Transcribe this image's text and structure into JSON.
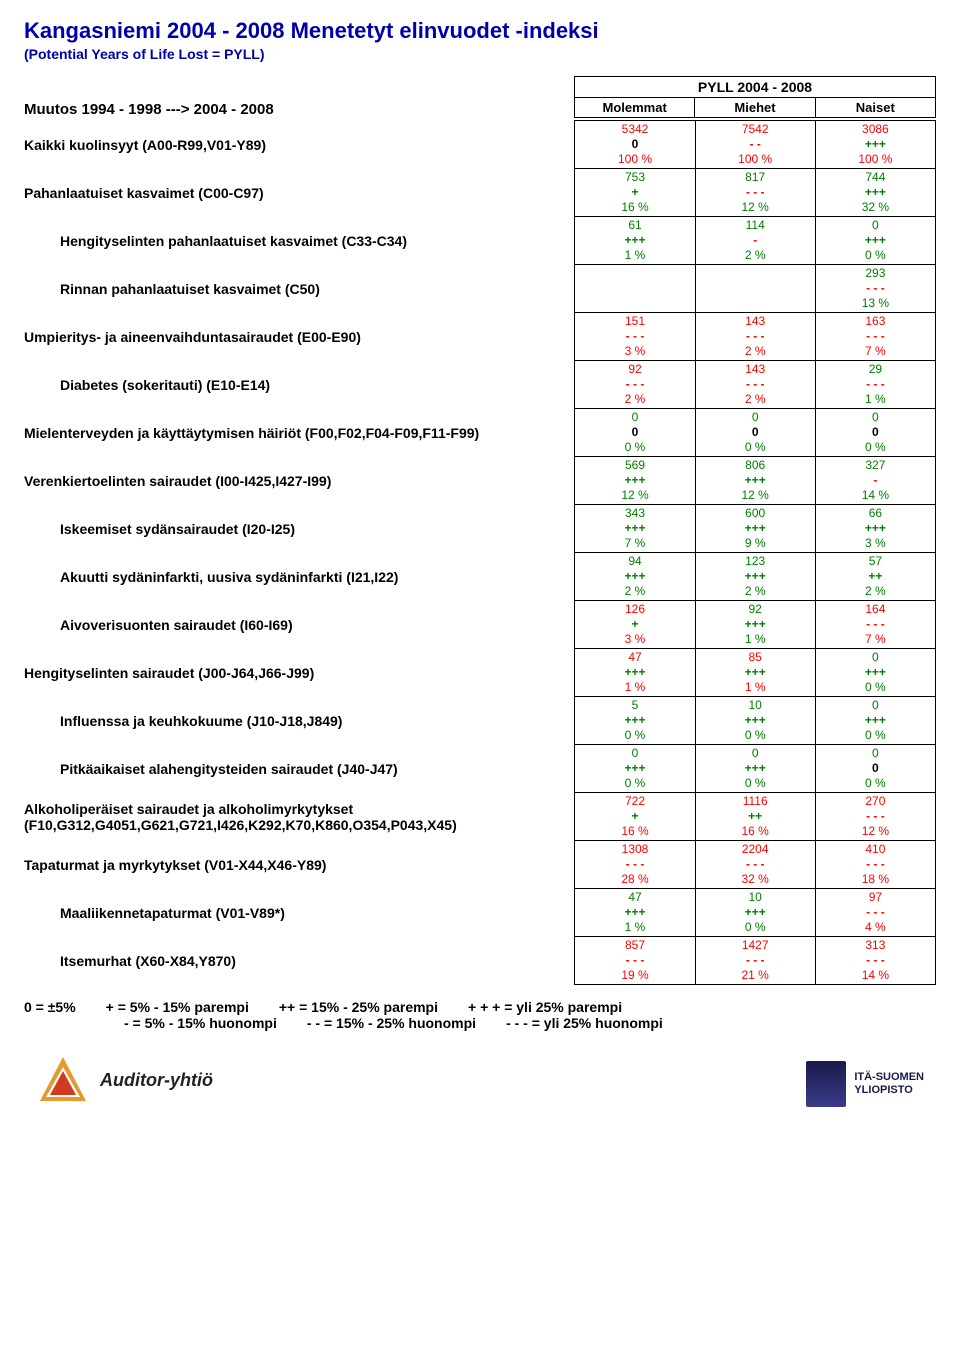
{
  "title": "Kangasniemi 2004 - 2008 Menetetyt elinvuodet -indeksi",
  "subtitle": "(Potential Years of Life Lost = PYLL)",
  "change_label": "Muutos 1994 - 1998 ---> 2004 - 2008",
  "pyll_header": "PYLL 2004 - 2008",
  "columns": [
    "Molemmat",
    "Miehet",
    "Naiset"
  ],
  "colors": {
    "red": "#ff0000",
    "green": "#008000",
    "black": "#000000",
    "title": "#0000aa"
  },
  "rows": [
    {
      "label": "Kaikki kuolinsyyt (A00-R99,V01-Y89)",
      "indent": false,
      "cells": [
        {
          "a": "5342",
          "b": "0",
          "c": "100 %",
          "ca": "#ff0000",
          "cb": "#000000",
          "cc": "#ff0000"
        },
        {
          "a": "7542",
          "b": "- -",
          "c": "100 %",
          "ca": "#ff0000",
          "cb": "#ff0000",
          "cc": "#ff0000"
        },
        {
          "a": "3086",
          "b": "+++",
          "c": "100 %",
          "ca": "#ff0000",
          "cb": "#008000",
          "cc": "#ff0000"
        }
      ]
    },
    {
      "label": "Pahanlaatuiset kasvaimet (C00-C97)",
      "indent": false,
      "cells": [
        {
          "a": "753",
          "b": "+",
          "c": "16 %",
          "ca": "#008000",
          "cb": "#008000",
          "cc": "#008000"
        },
        {
          "a": "817",
          "b": "- - -",
          "c": "12 %",
          "ca": "#008000",
          "cb": "#ff0000",
          "cc": "#008000"
        },
        {
          "a": "744",
          "b": "+++",
          "c": "32 %",
          "ca": "#008000",
          "cb": "#008000",
          "cc": "#008000"
        }
      ]
    },
    {
      "label": "Hengityselinten pahanlaatuiset kasvaimet (C33-C34)",
      "indent": true,
      "cells": [
        {
          "a": "61",
          "b": "+++",
          "c": "1 %",
          "ca": "#008000",
          "cb": "#008000",
          "cc": "#008000"
        },
        {
          "a": "114",
          "b": "-",
          "c": "2 %",
          "ca": "#008000",
          "cb": "#ff0000",
          "cc": "#008000"
        },
        {
          "a": "0",
          "b": "+++",
          "c": "0 %",
          "ca": "#008000",
          "cb": "#008000",
          "cc": "#008000"
        }
      ]
    },
    {
      "label": "Rinnan pahanlaatuiset kasvaimet (C50)",
      "indent": true,
      "cells": [
        {
          "a": "",
          "b": "",
          "c": "",
          "ca": "#000000",
          "cb": "#000000",
          "cc": "#000000"
        },
        {
          "a": "",
          "b": "",
          "c": "",
          "ca": "#000000",
          "cb": "#000000",
          "cc": "#000000"
        },
        {
          "a": "293",
          "b": "- - -",
          "c": "13 %",
          "ca": "#008000",
          "cb": "#ff0000",
          "cc": "#008000"
        }
      ]
    },
    {
      "label": "Umpieritys- ja aineenvaihduntasairaudet (E00-E90)",
      "indent": false,
      "cells": [
        {
          "a": "151",
          "b": "- - -",
          "c": "3 %",
          "ca": "#ff0000",
          "cb": "#ff0000",
          "cc": "#ff0000"
        },
        {
          "a": "143",
          "b": "- - -",
          "c": "2 %",
          "ca": "#ff0000",
          "cb": "#ff0000",
          "cc": "#ff0000"
        },
        {
          "a": "163",
          "b": "- - -",
          "c": "7 %",
          "ca": "#ff0000",
          "cb": "#ff0000",
          "cc": "#ff0000"
        }
      ]
    },
    {
      "label": "Diabetes (sokeritauti) (E10-E14)",
      "indent": true,
      "cells": [
        {
          "a": "92",
          "b": "- - -",
          "c": "2 %",
          "ca": "#ff0000",
          "cb": "#ff0000",
          "cc": "#ff0000"
        },
        {
          "a": "143",
          "b": "- - -",
          "c": "2 %",
          "ca": "#ff0000",
          "cb": "#ff0000",
          "cc": "#ff0000"
        },
        {
          "a": "29",
          "b": "- - -",
          "c": "1 %",
          "ca": "#008000",
          "cb": "#ff0000",
          "cc": "#008000"
        }
      ]
    },
    {
      "label": "Mielenterveyden ja käyttäytymisen häiriöt (F00,F02,F04-F09,F11-F99)",
      "indent": false,
      "cells": [
        {
          "a": "0",
          "b": "0",
          "c": "0 %",
          "ca": "#008000",
          "cb": "#000000",
          "cc": "#008000"
        },
        {
          "a": "0",
          "b": "0",
          "c": "0 %",
          "ca": "#008000",
          "cb": "#000000",
          "cc": "#008000"
        },
        {
          "a": "0",
          "b": "0",
          "c": "0 %",
          "ca": "#008000",
          "cb": "#000000",
          "cc": "#008000"
        }
      ]
    },
    {
      "label": "Verenkiertoelinten sairaudet (I00-I425,I427-I99)",
      "indent": false,
      "cells": [
        {
          "a": "569",
          "b": "+++",
          "c": "12 %",
          "ca": "#008000",
          "cb": "#008000",
          "cc": "#008000"
        },
        {
          "a": "806",
          "b": "+++",
          "c": "12 %",
          "ca": "#008000",
          "cb": "#008000",
          "cc": "#008000"
        },
        {
          "a": "327",
          "b": "-",
          "c": "14 %",
          "ca": "#008000",
          "cb": "#ff0000",
          "cc": "#008000"
        }
      ]
    },
    {
      "label": "Iskeemiset sydänsairaudet (I20-I25)",
      "indent": true,
      "cells": [
        {
          "a": "343",
          "b": "+++",
          "c": "7 %",
          "ca": "#008000",
          "cb": "#008000",
          "cc": "#008000"
        },
        {
          "a": "600",
          "b": "+++",
          "c": "9 %",
          "ca": "#008000",
          "cb": "#008000",
          "cc": "#008000"
        },
        {
          "a": "66",
          "b": "+++",
          "c": "3 %",
          "ca": "#008000",
          "cb": "#008000",
          "cc": "#008000"
        }
      ]
    },
    {
      "label": "Akuutti sydäninfarkti, uusiva sydäninfarkti (I21,I22)",
      "indent": true,
      "cells": [
        {
          "a": "94",
          "b": "+++",
          "c": "2 %",
          "ca": "#008000",
          "cb": "#008000",
          "cc": "#008000"
        },
        {
          "a": "123",
          "b": "+++",
          "c": "2 %",
          "ca": "#008000",
          "cb": "#008000",
          "cc": "#008000"
        },
        {
          "a": "57",
          "b": "++",
          "c": "2 %",
          "ca": "#008000",
          "cb": "#008000",
          "cc": "#008000"
        }
      ]
    },
    {
      "label": "Aivoverisuonten sairaudet (I60-I69)",
      "indent": true,
      "cells": [
        {
          "a": "126",
          "b": "+",
          "c": "3 %",
          "ca": "#ff0000",
          "cb": "#008000",
          "cc": "#ff0000"
        },
        {
          "a": "92",
          "b": "+++",
          "c": "1 %",
          "ca": "#008000",
          "cb": "#008000",
          "cc": "#008000"
        },
        {
          "a": "164",
          "b": "- - -",
          "c": "7 %",
          "ca": "#ff0000",
          "cb": "#ff0000",
          "cc": "#ff0000"
        }
      ]
    },
    {
      "label": "Hengityselinten sairaudet (J00-J64,J66-J99)",
      "indent": false,
      "cells": [
        {
          "a": "47",
          "b": "+++",
          "c": "1 %",
          "ca": "#ff0000",
          "cb": "#008000",
          "cc": "#ff0000"
        },
        {
          "a": "85",
          "b": "+++",
          "c": "1 %",
          "ca": "#ff0000",
          "cb": "#008000",
          "cc": "#ff0000"
        },
        {
          "a": "0",
          "b": "+++",
          "c": "0 %",
          "ca": "#008000",
          "cb": "#008000",
          "cc": "#008000"
        }
      ]
    },
    {
      "label": "Influenssa ja keuhkokuume (J10-J18,J849)",
      "indent": true,
      "cells": [
        {
          "a": "5",
          "b": "+++",
          "c": "0 %",
          "ca": "#008000",
          "cb": "#008000",
          "cc": "#008000"
        },
        {
          "a": "10",
          "b": "+++",
          "c": "0 %",
          "ca": "#008000",
          "cb": "#008000",
          "cc": "#008000"
        },
        {
          "a": "0",
          "b": "+++",
          "c": "0 %",
          "ca": "#008000",
          "cb": "#008000",
          "cc": "#008000"
        }
      ]
    },
    {
      "label": "Pitkäaikaiset alahengitysteiden sairaudet (J40-J47)",
      "indent": true,
      "cells": [
        {
          "a": "0",
          "b": "+++",
          "c": "0 %",
          "ca": "#008000",
          "cb": "#008000",
          "cc": "#008000"
        },
        {
          "a": "0",
          "b": "+++",
          "c": "0 %",
          "ca": "#008000",
          "cb": "#008000",
          "cc": "#008000"
        },
        {
          "a": "0",
          "b": "0",
          "c": "0 %",
          "ca": "#008000",
          "cb": "#000000",
          "cc": "#008000"
        }
      ]
    },
    {
      "label": "Alkoholiperäiset sairaudet ja alkoholimyrkytykset (F10,G312,G4051,G621,G721,I426,K292,K70,K860,O354,P043,X45)",
      "indent": false,
      "cells": [
        {
          "a": "722",
          "b": "+",
          "c": "16 %",
          "ca": "#ff0000",
          "cb": "#008000",
          "cc": "#ff0000"
        },
        {
          "a": "1116",
          "b": "++",
          "c": "16 %",
          "ca": "#ff0000",
          "cb": "#008000",
          "cc": "#ff0000"
        },
        {
          "a": "270",
          "b": "- - -",
          "c": "12 %",
          "ca": "#ff0000",
          "cb": "#ff0000",
          "cc": "#ff0000"
        }
      ]
    },
    {
      "label": "Tapaturmat ja myrkytykset (V01-X44,X46-Y89)",
      "indent": false,
      "cells": [
        {
          "a": "1308",
          "b": "- - -",
          "c": "28 %",
          "ca": "#ff0000",
          "cb": "#ff0000",
          "cc": "#ff0000"
        },
        {
          "a": "2204",
          "b": "- - -",
          "c": "32 %",
          "ca": "#ff0000",
          "cb": "#ff0000",
          "cc": "#ff0000"
        },
        {
          "a": "410",
          "b": "- - -",
          "c": "18 %",
          "ca": "#ff0000",
          "cb": "#ff0000",
          "cc": "#ff0000"
        }
      ]
    },
    {
      "label": "Maaliikennetapaturmat (V01-V89*)",
      "indent": true,
      "cells": [
        {
          "a": "47",
          "b": "+++",
          "c": "1 %",
          "ca": "#008000",
          "cb": "#008000",
          "cc": "#008000"
        },
        {
          "a": "10",
          "b": "+++",
          "c": "0 %",
          "ca": "#008000",
          "cb": "#008000",
          "cc": "#008000"
        },
        {
          "a": "97",
          "b": "- - -",
          "c": "4 %",
          "ca": "#ff0000",
          "cb": "#ff0000",
          "cc": "#ff0000"
        }
      ]
    },
    {
      "label": "Itsemurhat (X60-X84,Y870)",
      "indent": true,
      "cells": [
        {
          "a": "857",
          "b": "- - -",
          "c": "19 %",
          "ca": "#ff0000",
          "cb": "#ff0000",
          "cc": "#ff0000"
        },
        {
          "a": "1427",
          "b": "- - -",
          "c": "21 %",
          "ca": "#ff0000",
          "cb": "#ff0000",
          "cc": "#ff0000"
        },
        {
          "a": "313",
          "b": "- - -",
          "c": "14 %",
          "ca": "#ff0000",
          "cb": "#ff0000",
          "cc": "#ff0000"
        }
      ]
    }
  ],
  "legend": {
    "row1": [
      "0 = ±5%",
      "+ = 5% - 15% parempi",
      "++ = 15% - 25% parempi",
      "+ + + = yli 25% parempi"
    ],
    "row2": [
      "- = 5% - 15% huonompi",
      "- - = 15% - 25% huonompi",
      "-  -  - = yli 25% huonompi"
    ]
  },
  "footer": {
    "left_logo_text": "Auditor-yhtiö",
    "right_logo_line1": "ITÄ-SUOMEN",
    "right_logo_line2": "YLIOPISTO"
  }
}
